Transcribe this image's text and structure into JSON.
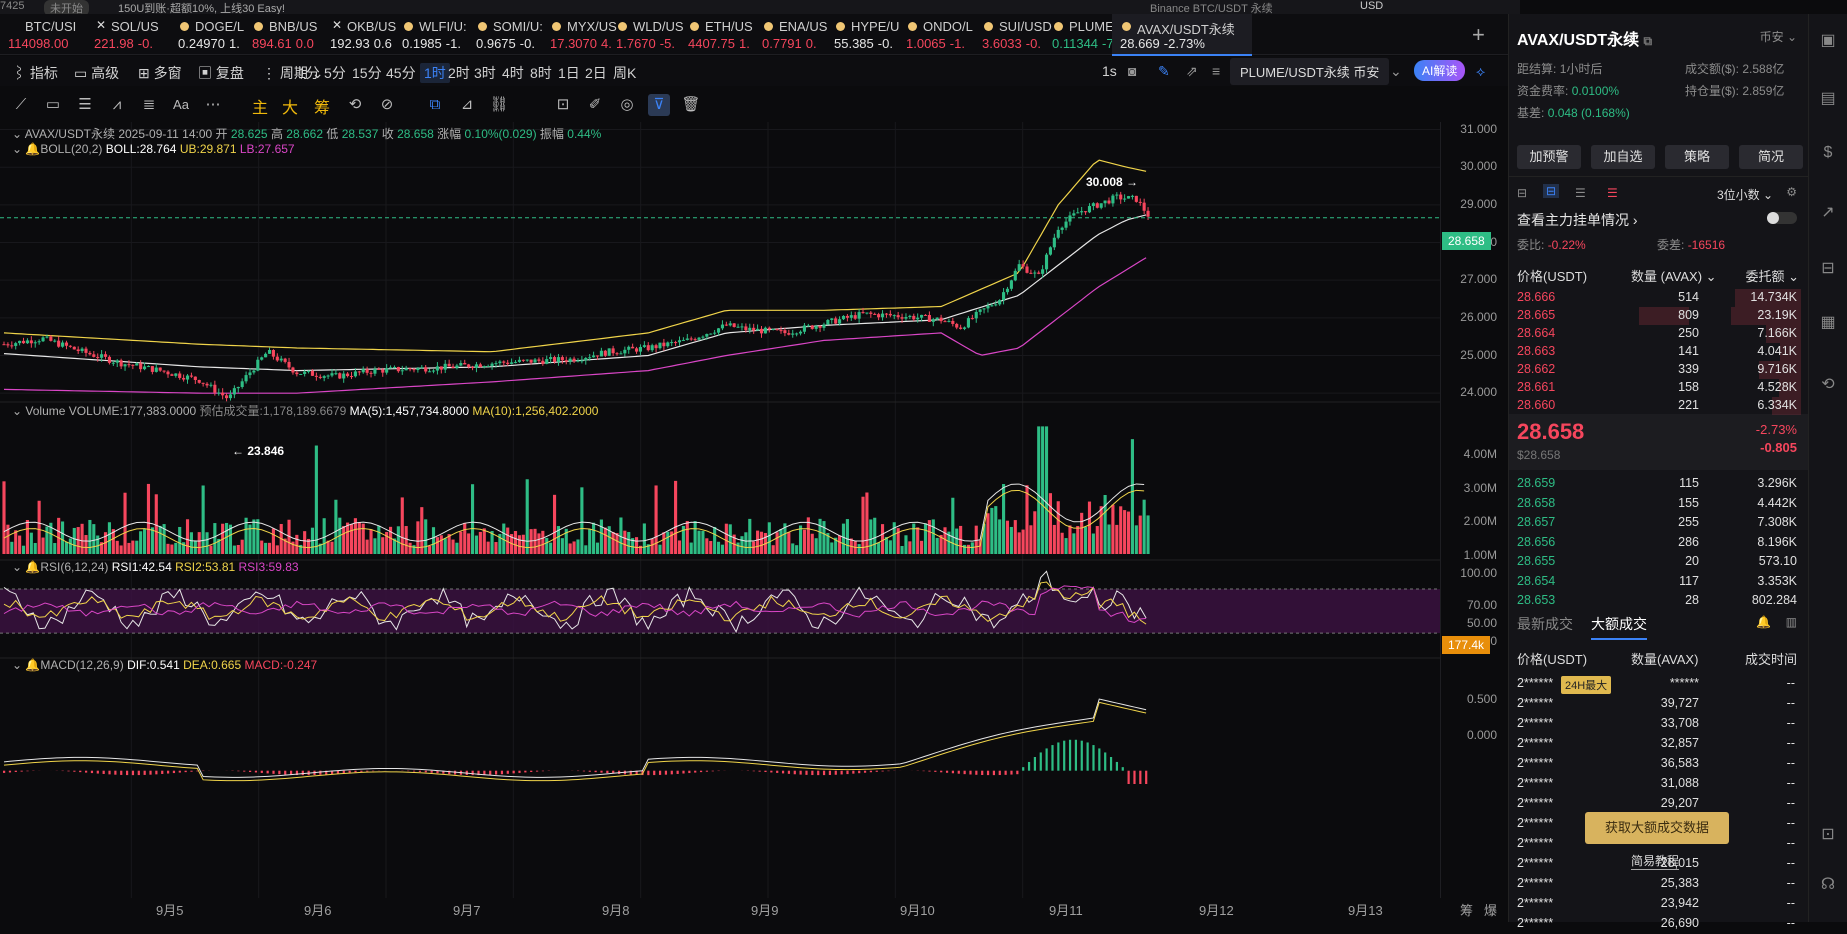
{
  "top_strip": {
    "left": "7425",
    "badge": "未开始",
    "notice": "150U到账·超额10%, 上线30 Easy!",
    "search": "Binance BTC/USDT 永续",
    "currency": "USD"
  },
  "tickers": [
    {
      "symbol": "BTC/USI",
      "price": "114098.00",
      "change": "",
      "color": "red",
      "icon": "none"
    },
    {
      "symbol": "SOL/US",
      "price": "221.98",
      "change": "-0.",
      "color": "red",
      "icon": "x-icon"
    },
    {
      "symbol": "DOGE/L",
      "price": "0.24970",
      "change": "1.",
      "color": "white",
      "icon": "coin-icon"
    },
    {
      "symbol": "BNB/US",
      "price": "894.61",
      "change": "0.0",
      "color": "red",
      "icon": "coin-icon"
    },
    {
      "symbol": "OKB/US",
      "price": "192.93",
      "change": "0.6",
      "color": "white",
      "icon": "x-icon"
    },
    {
      "symbol": "WLFI/U:",
      "price": "0.1985",
      "change": "-1.",
      "color": "white",
      "icon": "coin-icon"
    },
    {
      "symbol": "SOMI/U:",
      "price": "0.9675",
      "change": "-0.",
      "color": "white",
      "icon": "coin-icon"
    },
    {
      "symbol": "MYX/US",
      "price": "17.3070",
      "change": "4.",
      "color": "red",
      "icon": "coin-icon"
    },
    {
      "symbol": "WLD/US",
      "price": "1.7670",
      "change": "-5.",
      "color": "red",
      "icon": "coin-icon"
    },
    {
      "symbol": "ETH/US",
      "price": "4407.75",
      "change": "1.",
      "color": "red",
      "icon": "coin-icon"
    },
    {
      "symbol": "ENA/US",
      "price": "0.7791",
      "change": "0.",
      "color": "red",
      "icon": "coin-icon"
    },
    {
      "symbol": "HYPE/U",
      "price": "55.385",
      "change": "-0.",
      "color": "white",
      "icon": "coin-icon"
    },
    {
      "symbol": "ONDO/L",
      "price": "1.0065",
      "change": "-1.",
      "color": "red",
      "icon": "coin-icon"
    },
    {
      "symbol": "SUI/USD",
      "price": "3.6033",
      "change": "-0.",
      "color": "red",
      "icon": "coin-icon"
    },
    {
      "symbol": "PLUME/",
      "price": "0.11344",
      "change": "-7",
      "color": "green",
      "icon": "coin-icon"
    },
    {
      "symbol": "AVAX/USDT永续",
      "price": "28.669",
      "change": "-2.73%",
      "color": "white",
      "icon": "coin-icon",
      "active": true
    }
  ],
  "toolbar": {
    "indicators": "指标",
    "advanced": "高级",
    "multi_window": "多窗",
    "replay": "复盘",
    "period": "周期",
    "intervals": [
      "1分",
      "5分",
      "15分",
      "45分",
      "1时",
      "2时",
      "3时",
      "4时",
      "8时",
      "1日",
      "2日",
      "周K"
    ],
    "selected_interval": "1时",
    "right_interval": "1s",
    "compare_pair": "PLUME/USDT永续 币安",
    "ai_button": "AI解读"
  },
  "draw_tools": {
    "cn_labels": [
      "主",
      "大",
      "筹"
    ],
    "text_tool": "Aa"
  },
  "chart": {
    "info_line": {
      "pair": "AVAX/USDT永续",
      "time": "2025-09-11 14:00",
      "open_label": "开",
      "open": "28.625",
      "high_label": "高",
      "high": "28.662",
      "low_label": "低",
      "low": "28.537",
      "close_label": "收",
      "close": "28.658",
      "change_label": "涨幅",
      "change": "0.10%(0.029)",
      "amp_label": "振幅",
      "amp": "0.44%"
    },
    "boll_line": {
      "name": "BOLL(20,2)",
      "boll": "BOLL:28.764",
      "ub": "UB:29.871",
      "lb": "LB:27.657"
    },
    "volume_line": {
      "name": "Volume",
      "volume": "VOLUME:177,383.0000",
      "est": "预估成交量:1,178,189.6679",
      "ma5": "MA(5):1,457,734.8000",
      "ma10": "MA(10):1,256,402.2000"
    },
    "rsi_line": {
      "name": "RSI(6,12,24)",
      "rsi1": "RSI1:42.54",
      "rsi2": "RSI2:53.81",
      "rsi3": "RSI3:59.83"
    },
    "macd_line": {
      "name": "MACD(12,26,9)",
      "dif": "DIF:0.541",
      "dea": "DEA:0.665",
      "macd": "MACD:-0.247"
    },
    "high_marker": "30.008",
    "low_marker": "23.846",
    "price_tag": "28.658",
    "volume_tag": "177.4k",
    "price_axis": [
      "31.000",
      "30.000",
      "29.000",
      "28.000",
      "27.000",
      "26.000",
      "25.000",
      "24.000"
    ],
    "volume_axis": [
      "4.00M",
      "3.00M",
      "2.00M",
      "1.00M"
    ],
    "rsi_axis": [
      "100.00",
      "70.00",
      "50.00",
      "30.00"
    ],
    "macd_axis": [
      "0.500",
      "0.000"
    ],
    "x_labels": [
      "9月5",
      "9月6",
      "9月7",
      "9月8",
      "9月9",
      "9月10",
      "9月11",
      "9月12",
      "9月13"
    ],
    "x_right": [
      "筹",
      "爆"
    ]
  },
  "chart_data": {
    "type": "candlestick",
    "interval": "1h",
    "x_range": [
      "2025-09-04",
      "2025-09-11 14:00"
    ],
    "price_ylim": [
      23.5,
      31.2
    ],
    "price_path": [
      [
        0,
        25.3
      ],
      [
        20,
        25.45
      ],
      [
        40,
        25.1
      ],
      [
        60,
        24.8
      ],
      [
        80,
        24.6
      ],
      [
        100,
        24.35
      ],
      [
        115,
        23.85
      ],
      [
        125,
        24.5
      ],
      [
        135,
        25.1
      ],
      [
        150,
        24.55
      ],
      [
        170,
        24.45
      ],
      [
        190,
        24.6
      ],
      [
        210,
        24.65
      ],
      [
        230,
        24.7
      ],
      [
        250,
        24.8
      ],
      [
        270,
        24.85
      ],
      [
        290,
        24.9
      ],
      [
        310,
        25.1
      ],
      [
        330,
        25.2
      ],
      [
        350,
        25.4
      ],
      [
        370,
        25.8
      ],
      [
        380,
        25.7
      ],
      [
        400,
        25.6
      ],
      [
        420,
        25.85
      ],
      [
        440,
        26.1
      ],
      [
        460,
        26.05
      ],
      [
        480,
        25.95
      ],
      [
        490,
        25.75
      ],
      [
        500,
        26.15
      ],
      [
        510,
        26.5
      ],
      [
        520,
        27.4
      ],
      [
        530,
        27.1
      ],
      [
        540,
        28.4
      ],
      [
        550,
        28.8
      ],
      [
        560,
        29.0
      ],
      [
        570,
        29.2
      ],
      [
        580,
        29.15
      ],
      [
        587,
        28.66
      ]
    ],
    "boll_ub": [
      [
        0,
        25.6
      ],
      [
        100,
        25.3
      ],
      [
        150,
        25.2
      ],
      [
        250,
        25.1
      ],
      [
        330,
        25.6
      ],
      [
        370,
        26.2
      ],
      [
        420,
        26.2
      ],
      [
        480,
        26.3
      ],
      [
        520,
        27.2
      ],
      [
        540,
        29.0
      ],
      [
        560,
        30.2
      ],
      [
        575,
        30.0
      ],
      [
        587,
        29.87
      ]
    ],
    "boll_mid": [
      [
        0,
        25.05
      ],
      [
        100,
        24.7
      ],
      [
        150,
        24.6
      ],
      [
        250,
        24.7
      ],
      [
        330,
        25.0
      ],
      [
        370,
        25.6
      ],
      [
        420,
        25.8
      ],
      [
        480,
        25.95
      ],
      [
        520,
        26.6
      ],
      [
        540,
        27.4
      ],
      [
        560,
        28.2
      ],
      [
        575,
        28.6
      ],
      [
        587,
        28.76
      ]
    ],
    "boll_lb": [
      [
        0,
        24.1
      ],
      [
        100,
        24.0
      ],
      [
        150,
        24.0
      ],
      [
        250,
        24.3
      ],
      [
        330,
        24.6
      ],
      [
        370,
        25.0
      ],
      [
        420,
        25.4
      ],
      [
        480,
        25.6
      ],
      [
        500,
        25.0
      ],
      [
        520,
        25.2
      ],
      [
        540,
        26.0
      ],
      [
        560,
        26.8
      ],
      [
        587,
        27.66
      ]
    ],
    "volume_ylim": [
      0,
      4.2
    ],
    "volume_spikes_M": [
      [
        160,
        3.4
      ],
      [
        530,
        4.0
      ],
      [
        533,
        4.0
      ],
      [
        578,
        3.6
      ]
    ],
    "rsi_ylim": [
      0,
      100
    ],
    "rsi_band": [
      30,
      70
    ],
    "macd_ylim": [
      -0.12,
      0.8
    ]
  },
  "panel": {
    "title": "AVAX/USDT永续",
    "exchange": "币安",
    "funding_countdown_label": "距结算:",
    "funding_countdown": "1小时后",
    "turnover_label": "成交额($):",
    "turnover": "2.588亿",
    "funding_rate_label": "资金费率:",
    "funding_rate": "0.0100%",
    "oi_label": "持仓量($):",
    "oi": "2.859亿",
    "basis_label": "基差:",
    "basis": "0.048 (0.168%)",
    "buttons": [
      "加预警",
      "加自选",
      "策略",
      "简况"
    ],
    "decimals": "3位小数",
    "whale_title": "查看主力挂单情况",
    "ratio_label": "委比:",
    "ratio": "-0.22%",
    "diff_label": "委差:",
    "diff": "-16516",
    "ob_headers": [
      "价格(USDT)",
      "数量 (AVAX)",
      "委托额"
    ],
    "asks": [
      {
        "p": "28.666",
        "q": "514",
        "t": "14.734K",
        "w": 0.95
      },
      {
        "p": "28.665",
        "q": "809",
        "t": "23.19K",
        "w": 1.0
      },
      {
        "p": "28.664",
        "q": "250",
        "t": "7.166K",
        "w": 0.5
      },
      {
        "p": "28.663",
        "q": "141",
        "t": "4.041K",
        "w": 0.3
      },
      {
        "p": "28.662",
        "q": "339",
        "t": "9.716K",
        "w": 0.6
      },
      {
        "p": "28.661",
        "q": "158",
        "t": "4.528K",
        "w": 0.32
      },
      {
        "p": "28.660",
        "q": "221",
        "t": "6.334K",
        "w": 0.42
      }
    ],
    "last_price": "28.658",
    "last_usd": "$28.658",
    "last_pct": "-2.73%",
    "last_chg": "-0.805",
    "bids": [
      {
        "p": "28.659",
        "q": "115",
        "t": "3.296K"
      },
      {
        "p": "28.658",
        "q": "155",
        "t": "4.442K"
      },
      {
        "p": "28.657",
        "q": "255",
        "t": "7.308K"
      },
      {
        "p": "28.656",
        "q": "286",
        "t": "8.196K"
      },
      {
        "p": "28.655",
        "q": "20",
        "t": "573.10"
      },
      {
        "p": "28.654",
        "q": "117",
        "t": "3.353K"
      },
      {
        "p": "28.653",
        "q": "28",
        "t": "802.284"
      }
    ],
    "trade_tabs": [
      "最新成交",
      "大额成交"
    ],
    "trade_headers": [
      "价格(USDT)",
      "数量(AVAX)",
      "成交时间"
    ],
    "badge_24h": "24H最大",
    "trades": [
      {
        "p": "2******",
        "q": "******",
        "t": "--"
      },
      {
        "p": "2******",
        "q": "39,727",
        "t": "--"
      },
      {
        "p": "2******",
        "q": "33,708",
        "t": "--"
      },
      {
        "p": "2******",
        "q": "32,857",
        "t": "--"
      },
      {
        "p": "2******",
        "q": "36,583",
        "t": "--"
      },
      {
        "p": "2******",
        "q": "31,088",
        "t": "--"
      },
      {
        "p": "2******",
        "q": "29,207",
        "t": "--"
      },
      {
        "p": "2******",
        "q": "",
        "t": "--"
      },
      {
        "p": "2******",
        "q": "",
        "t": "--"
      },
      {
        "p": "2******",
        "q": "28,015",
        "t": "--"
      },
      {
        "p": "2******",
        "q": "25,383",
        "t": "--"
      },
      {
        "p": "2******",
        "q": "23,942",
        "t": "--"
      },
      {
        "p": "2******",
        "q": "26,690",
        "t": "--"
      }
    ],
    "unlock_button": "获取大额成交数据",
    "tutorial_link": "简易教程"
  },
  "colors": {
    "up": "#2ebd85",
    "down": "#f6465d",
    "ub": "#f0d44a",
    "mid": "#e6e6e6",
    "lb": "#d946c6",
    "accent": "#3b82f6",
    "gold": "#e8c36a"
  }
}
